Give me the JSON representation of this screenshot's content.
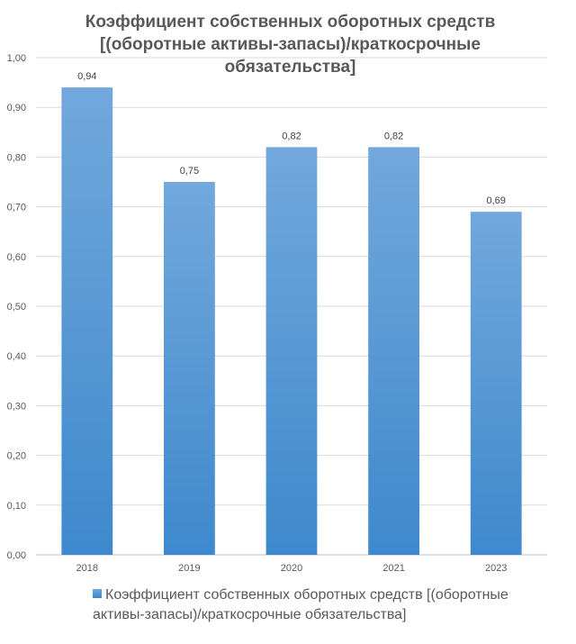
{
  "chart_data": {
    "type": "bar",
    "title": "Коэффициент собственных оборотных средств [(оборотные активы-запасы)/краткосрочные обязательства]",
    "categories": [
      "2018",
      "2019",
      "2020",
      "2021",
      "2023"
    ],
    "series": [
      {
        "name": "Коэффициент собственных оборотных средств [(оборотные активы-запасы)/краткосрочные обязательства]",
        "values": [
          0.94,
          0.75,
          0.82,
          0.82,
          0.69
        ],
        "labels": [
          "0,94",
          "0,75",
          "0,82",
          "0,82",
          "0,69"
        ],
        "color": "#5b9bd5"
      }
    ],
    "ylim": [
      0,
      1
    ],
    "yticks": [
      "0,00",
      "0,10",
      "0,20",
      "0,30",
      "0,40",
      "0,50",
      "0,60",
      "0,70",
      "0,80",
      "0,90",
      "1,00"
    ],
    "grid": true,
    "legend_position": "bottom"
  }
}
